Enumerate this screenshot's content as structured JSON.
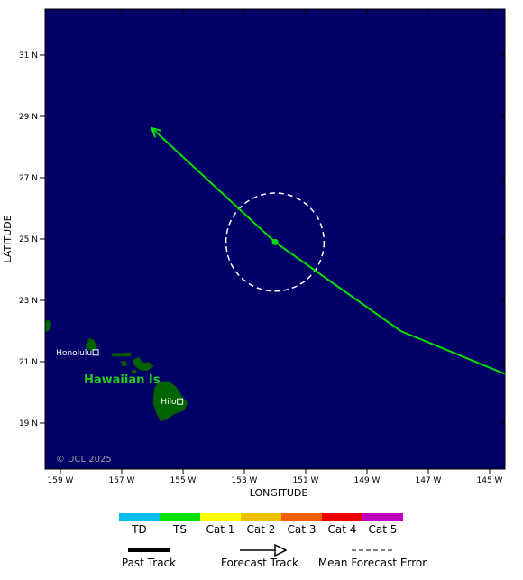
{
  "map": {
    "background_color": "#000066",
    "land_color": "#006400",
    "track_color": "#00e000",
    "error_circle_color": "#ffffff",
    "lon_range": [
      -159.5,
      -144.5
    ],
    "lat_range": [
      17.5,
      32.5
    ],
    "x_axis": {
      "title": "LONGITUDE",
      "ticks": [
        {
          "lon": -159,
          "label": "159 W"
        },
        {
          "lon": -157,
          "label": "157 W"
        },
        {
          "lon": -155,
          "label": "155 W"
        },
        {
          "lon": -153,
          "label": "153 W"
        },
        {
          "lon": -151,
          "label": "151 W"
        },
        {
          "lon": -149,
          "label": "149 W"
        },
        {
          "lon": -147,
          "label": "147 W"
        },
        {
          "lon": -145,
          "label": "145 W"
        }
      ]
    },
    "y_axis": {
      "title": "LATITUDE",
      "ticks": [
        {
          "lat": 31,
          "label": "31 N"
        },
        {
          "lat": 29,
          "label": "29 N"
        },
        {
          "lat": 27,
          "label": "27 N"
        },
        {
          "lat": 25,
          "label": "25 N"
        },
        {
          "lat": 23,
          "label": "23 N"
        },
        {
          "lat": 21,
          "label": "21 N"
        },
        {
          "lat": 19,
          "label": "19 N"
        }
      ]
    },
    "track_points": [
      {
        "lon": -144.5,
        "lat": 20.6
      },
      {
        "lon": -147.9,
        "lat": 22.0
      },
      {
        "lon": -152.0,
        "lat": 24.9
      },
      {
        "lon": -156.0,
        "lat": 28.6
      }
    ],
    "current_position": {
      "lon": -152.0,
      "lat": 24.9
    },
    "forecast_error_radius_deg": 1.6,
    "cities": [
      {
        "name": "Honolulu",
        "lon": -157.85,
        "lat": 21.3
      },
      {
        "name": "Hilo",
        "lon": -155.1,
        "lat": 19.7
      }
    ],
    "region_label": "Hawaiian Is",
    "region_label_color": "#22cc22",
    "copyright": "© UCL 2025"
  },
  "legend": {
    "categories": [
      {
        "label": "TD",
        "color": "#00c0f0"
      },
      {
        "label": "TS",
        "color": "#00e000"
      },
      {
        "label": "Cat 1",
        "color": "#ffff00"
      },
      {
        "label": "Cat 2",
        "color": "#f0c000"
      },
      {
        "label": "Cat 3",
        "color": "#f06000"
      },
      {
        "label": "Cat 4",
        "color": "#f00000"
      },
      {
        "label": "Cat 5",
        "color": "#c000c0"
      }
    ],
    "line_styles": {
      "past_track": "Past Track",
      "forecast_track": "Forecast Track",
      "mean_error": "Mean Forecast Error"
    }
  }
}
